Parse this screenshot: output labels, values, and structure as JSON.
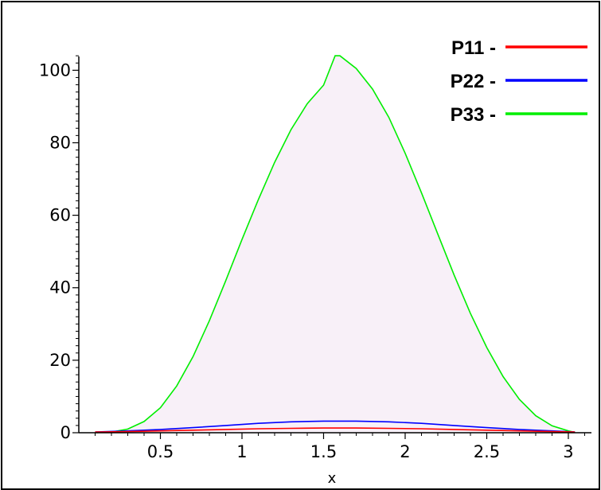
{
  "chart_data": {
    "type": "line",
    "title": "",
    "xlabel": "x",
    "ylabel": "",
    "xlim": [
      0.0,
      3.1416
    ],
    "ylim": [
      0,
      106
    ],
    "x_ticks": [
      0.5,
      1,
      1.5,
      2,
      2.5,
      3
    ],
    "x_tick_labels": [
      "0.5",
      "1",
      "1.5",
      "2",
      "2.5",
      "3"
    ],
    "y_ticks": [
      0,
      20,
      40,
      60,
      80,
      100
    ],
    "y_tick_labels": [
      "0",
      "20",
      "40",
      "60",
      "80",
      "100"
    ],
    "grid": false,
    "legend_position": "top-right",
    "fill_under": "P33",
    "fill_color": "#f8f0f8",
    "series": [
      {
        "name": "P11 -",
        "color": "#ff0000",
        "x": [
          0.1,
          0.3,
          0.5,
          0.7,
          0.9,
          1.1,
          1.3,
          1.5,
          1.5708,
          1.7,
          1.9,
          2.1,
          2.3,
          2.5,
          2.7,
          2.9,
          3.04
        ],
        "y": [
          0.2,
          0.3,
          0.5,
          0.7,
          0.9,
          1.1,
          1.2,
          1.3,
          1.3,
          1.3,
          1.2,
          1.1,
          0.9,
          0.7,
          0.5,
          0.3,
          0.2
        ]
      },
      {
        "name": "P22 -",
        "color": "#0000ff",
        "x": [
          0.1,
          0.3,
          0.5,
          0.7,
          0.9,
          1.1,
          1.3,
          1.5,
          1.5708,
          1.7,
          1.9,
          2.1,
          2.3,
          2.5,
          2.7,
          2.9,
          3.04
        ],
        "y": [
          0.2,
          0.5,
          0.9,
          1.4,
          2.0,
          2.6,
          3.0,
          3.2,
          3.2,
          3.2,
          3.0,
          2.6,
          2.0,
          1.4,
          0.9,
          0.5,
          0.2
        ]
      },
      {
        "name": "P33 -",
        "color": "#00ee00",
        "x": [
          0.1,
          0.2,
          0.3,
          0.4,
          0.5,
          0.6,
          0.7,
          0.8,
          0.9,
          1.0,
          1.1,
          1.2,
          1.3,
          1.4,
          1.5,
          1.5708,
          1.6,
          1.7,
          1.8,
          1.9,
          2.0,
          2.1,
          2.2,
          2.3,
          2.4,
          2.5,
          2.6,
          2.7,
          2.8,
          2.9,
          3.0,
          3.04
        ],
        "y": [
          0.0,
          0.2,
          1.0,
          3.1,
          6.9,
          12.9,
          21.0,
          30.9,
          41.9,
          53.3,
          64.3,
          74.6,
          83.6,
          90.8,
          95.9,
          104,
          104,
          100.5,
          94.8,
          87.0,
          77.1,
          66.2,
          54.8,
          43.5,
          32.9,
          23.5,
          15.5,
          9.2,
          4.7,
          1.9,
          0.5,
          0.1
        ]
      }
    ]
  }
}
